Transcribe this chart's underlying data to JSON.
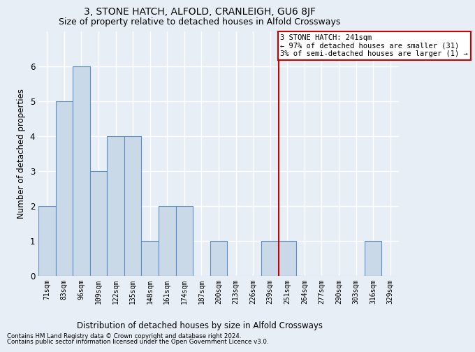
{
  "title": "3, STONE HATCH, ALFOLD, CRANLEIGH, GU6 8JF",
  "subtitle": "Size of property relative to detached houses in Alfold Crossways",
  "xlabel_bottom": "Distribution of detached houses by size in Alfold Crossways",
  "ylabel": "Number of detached properties",
  "categories": [
    "71sqm",
    "83sqm",
    "96sqm",
    "109sqm",
    "122sqm",
    "135sqm",
    "148sqm",
    "161sqm",
    "174sqm",
    "187sqm",
    "200sqm",
    "213sqm",
    "226sqm",
    "239sqm",
    "251sqm",
    "264sqm",
    "277sqm",
    "290sqm",
    "303sqm",
    "316sqm",
    "329sqm"
  ],
  "values": [
    2,
    5,
    6,
    3,
    4,
    4,
    1,
    2,
    2,
    0,
    1,
    0,
    0,
    1,
    1,
    0,
    0,
    0,
    0,
    1,
    0
  ],
  "bar_color": "#c9d9e8",
  "bar_edge_color": "#5b8fc9",
  "red_line_x": 13.5,
  "ylim": [
    0,
    7
  ],
  "yticks": [
    0,
    1,
    2,
    3,
    4,
    5,
    6
  ],
  "annotation_text": "3 STONE HATCH: 241sqm\n← 97% of detached houses are smaller (31)\n3% of semi-detached houses are larger (1) →",
  "annotation_box_color": "#ffffff",
  "annotation_box_edge": "#cc0000",
  "footnote1": "Contains HM Land Registry data © Crown copyright and database right 2024.",
  "footnote2": "Contains public sector information licensed under the Open Government Licence v3.0.",
  "background_color": "#e8eef6",
  "plot_bg_color": "#e8eef6",
  "title_fontsize": 10,
  "subtitle_fontsize": 9
}
